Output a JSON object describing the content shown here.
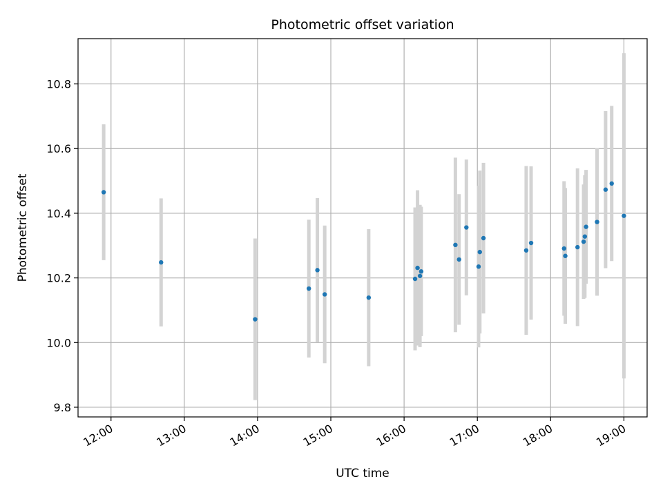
{
  "chart_data": {
    "type": "scatter",
    "title": "Photometric offset variation",
    "xlabel": "UTC time",
    "ylabel": "Photometric offset",
    "x_ticks": [
      "12:00",
      "13:00",
      "14:00",
      "15:00",
      "16:00",
      "17:00",
      "18:00",
      "19:00"
    ],
    "y_ticks": [
      "9.8",
      "10.0",
      "10.2",
      "10.4",
      "10.6",
      "10.8"
    ],
    "xlim": [
      "11:33",
      "19:19"
    ],
    "ylim": [
      9.77,
      10.94
    ],
    "grid": true,
    "marker_color": "#1f77b4",
    "errorbar_color": "#d3d3d3",
    "points": [
      {
        "time": "11:54",
        "y": 10.465,
        "err": 0.21
      },
      {
        "time": "12:41",
        "y": 10.248,
        "err": 0.198
      },
      {
        "time": "13:58",
        "y": 10.072,
        "err": 0.25
      },
      {
        "time": "14:42",
        "y": 10.167,
        "err": 0.213
      },
      {
        "time": "14:49",
        "y": 10.224,
        "err": 0.223
      },
      {
        "time": "14:55",
        "y": 10.149,
        "err": 0.213
      },
      {
        "time": "15:31",
        "y": 10.139,
        "err": 0.212
      },
      {
        "time": "16:09",
        "y": 10.197,
        "err": 0.221
      },
      {
        "time": "16:11",
        "y": 10.231,
        "err": 0.24
      },
      {
        "time": "16:13",
        "y": 10.206,
        "err": 0.22
      },
      {
        "time": "16:14",
        "y": 10.22,
        "err": 0.2
      },
      {
        "time": "16:42",
        "y": 10.302,
        "err": 0.27
      },
      {
        "time": "16:45",
        "y": 10.257,
        "err": 0.202
      },
      {
        "time": "16:51",
        "y": 10.356,
        "err": 0.21
      },
      {
        "time": "17:01",
        "y": 10.235,
        "err": 0.25
      },
      {
        "time": "17:02",
        "y": 10.28,
        "err": 0.252
      },
      {
        "time": "17:05",
        "y": 10.323,
        "err": 0.233
      },
      {
        "time": "17:40",
        "y": 10.285,
        "err": 0.261
      },
      {
        "time": "17:44",
        "y": 10.308,
        "err": 0.237
      },
      {
        "time": "18:11",
        "y": 10.291,
        "err": 0.208
      },
      {
        "time": "18:12",
        "y": 10.268,
        "err": 0.21
      },
      {
        "time": "18:22",
        "y": 10.295,
        "err": 0.244
      },
      {
        "time": "18:27",
        "y": 10.312,
        "err": 0.177
      },
      {
        "time": "18:28",
        "y": 10.328,
        "err": 0.19
      },
      {
        "time": "18:29",
        "y": 10.358,
        "err": 0.176
      },
      {
        "time": "18:38",
        "y": 10.373,
        "err": 0.228
      },
      {
        "time": "18:45",
        "y": 10.473,
        "err": 0.243
      },
      {
        "time": "18:50",
        "y": 10.492,
        "err": 0.24
      },
      {
        "time": "19:00",
        "y": 10.392,
        "err": 0.503
      }
    ]
  }
}
